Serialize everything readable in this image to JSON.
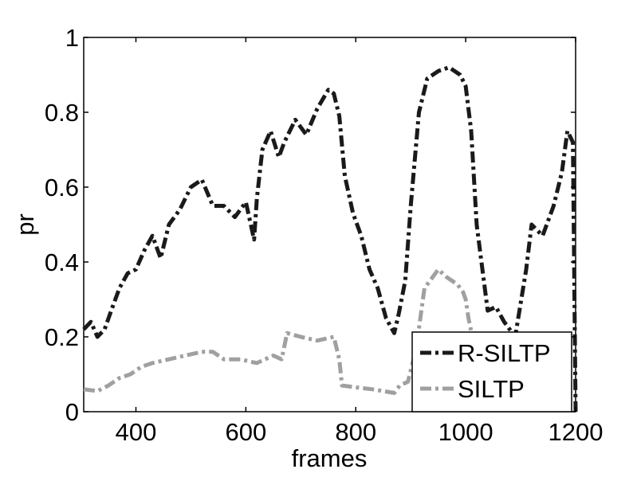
{
  "chart_data": {
    "type": "line",
    "title": "",
    "xlabel": "frames",
    "ylabel": "pr",
    "xlim": [
      305,
      1200
    ],
    "ylim": [
      0,
      1
    ],
    "xticks": [
      400,
      600,
      800,
      1000,
      1200
    ],
    "yticks": [
      0,
      0.2,
      0.4,
      0.6,
      0.8,
      1
    ],
    "xtick_labels": [
      "400",
      "600",
      "800",
      "1000",
      "1200"
    ],
    "ytick_labels": [
      "0",
      "0.2",
      "0.4",
      "0.6",
      "0.8",
      "1"
    ],
    "grid": false,
    "legend": {
      "position": "bottom-right",
      "entries": [
        "R-SILTP",
        "SILTP"
      ]
    },
    "series": [
      {
        "name": "R-SILTP",
        "color": "#1a1a1a",
        "line_style": "dash-dot",
        "x": [
          305,
          318,
          330,
          343,
          355,
          370,
          385,
          400,
          415,
          430,
          445,
          460,
          480,
          500,
          520,
          540,
          560,
          580,
          600,
          615,
          620,
          630,
          645,
          660,
          670,
          690,
          710,
          730,
          750,
          760,
          770,
          780,
          795,
          810,
          825,
          840,
          855,
          870,
          878,
          890,
          900,
          915,
          930,
          950,
          970,
          990,
          1000,
          1010,
          1020,
          1040,
          1055,
          1070,
          1090,
          1110,
          1120,
          1140,
          1160,
          1175,
          1185,
          1195,
          1200
        ],
        "y": [
          0.22,
          0.24,
          0.2,
          0.22,
          0.27,
          0.33,
          0.37,
          0.38,
          0.43,
          0.47,
          0.41,
          0.5,
          0.54,
          0.6,
          0.62,
          0.55,
          0.55,
          0.52,
          0.56,
          0.46,
          0.57,
          0.7,
          0.75,
          0.68,
          0.72,
          0.78,
          0.74,
          0.81,
          0.86,
          0.85,
          0.79,
          0.63,
          0.53,
          0.47,
          0.38,
          0.33,
          0.25,
          0.21,
          0.26,
          0.35,
          0.55,
          0.8,
          0.89,
          0.91,
          0.92,
          0.9,
          0.87,
          0.75,
          0.5,
          0.27,
          0.28,
          0.24,
          0.2,
          0.38,
          0.5,
          0.47,
          0.55,
          0.64,
          0.75,
          0.72,
          0.0
        ]
      },
      {
        "name": "SILTP",
        "color": "#a0a0a0",
        "line_style": "dash-dot",
        "x": [
          305,
          330,
          350,
          370,
          390,
          410,
          430,
          460,
          490,
          520,
          540,
          560,
          590,
          620,
          650,
          665,
          675,
          700,
          730,
          760,
          770,
          775,
          800,
          830,
          850,
          870,
          880,
          895,
          910,
          925,
          940,
          950,
          965,
          985,
          995,
          1000,
          1005,
          1012,
          1018
        ],
        "y": [
          0.06,
          0.055,
          0.07,
          0.09,
          0.1,
          0.12,
          0.13,
          0.14,
          0.15,
          0.16,
          0.16,
          0.14,
          0.14,
          0.13,
          0.15,
          0.14,
          0.21,
          0.2,
          0.19,
          0.2,
          0.14,
          0.07,
          0.065,
          0.06,
          0.055,
          0.05,
          0.07,
          0.08,
          0.17,
          0.33,
          0.36,
          0.38,
          0.36,
          0.34,
          0.32,
          0.3,
          0.25,
          0.2,
          0.15
        ]
      }
    ]
  }
}
